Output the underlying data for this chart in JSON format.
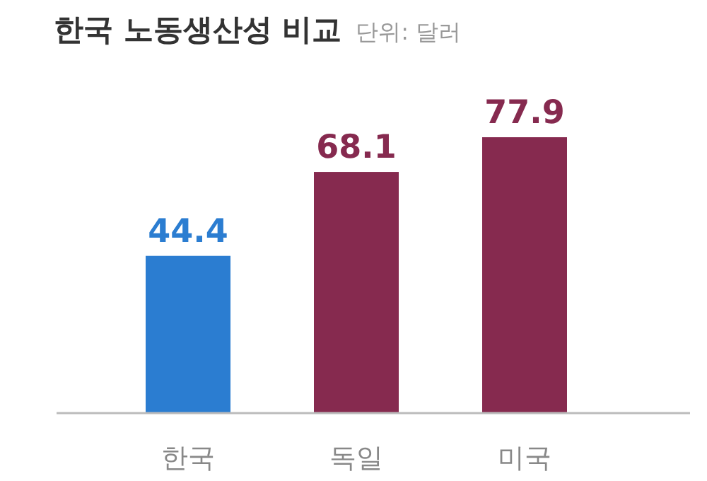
{
  "chart_data": {
    "type": "bar",
    "title": "한국 노동생산성 비교",
    "subtitle": "단위: 달러",
    "categories": [
      "한국",
      "독일",
      "미국"
    ],
    "values": [
      44.4,
      68.1,
      77.9
    ],
    "colors": [
      "#2b7dd1",
      "#862a4f",
      "#862a4f"
    ],
    "data_labels": true
  }
}
